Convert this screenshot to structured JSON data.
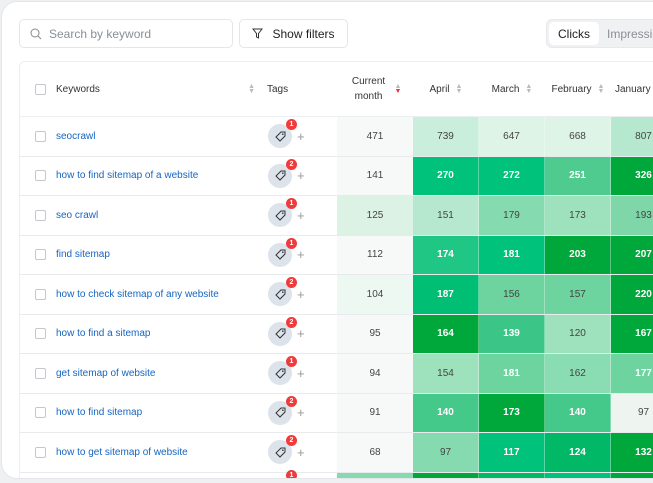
{
  "search": {
    "placeholder": "Search by keyword"
  },
  "filters_label": "Show filters",
  "metric_toggle": {
    "active": "Clicks",
    "inactive": "Impressions"
  },
  "columns": {
    "keywords": "Keywords",
    "tags": "Tags",
    "current": "Current month",
    "months": [
      "April",
      "March",
      "February",
      "January"
    ]
  },
  "sorted_column": "Current month",
  "sort_direction": "descending",
  "rows": [
    {
      "keyword": "seocrawl",
      "tags": "1",
      "current": "471",
      "cur_color": "#f7f9f8",
      "values": [
        "739",
        "647",
        "668",
        "807"
      ],
      "colors": [
        "#c9eedb",
        "#ddf4e7",
        "#ddf4e7",
        "#b6e8cf"
      ],
      "light": [
        0,
        0,
        0,
        0
      ]
    },
    {
      "keyword": "how to find sitemap of a website",
      "tags": "2",
      "current": "141",
      "cur_color": "#f7f9f8",
      "values": [
        "270",
        "272",
        "251",
        "326"
      ],
      "colors": [
        "#00c27a",
        "#00c27a",
        "#4fcb8f",
        "#00a83c"
      ],
      "light": [
        1,
        1,
        1,
        1
      ]
    },
    {
      "keyword": "seo crawl",
      "tags": "1",
      "current": "125",
      "cur_color": "#dcf2e5",
      "values": [
        "151",
        "179",
        "173",
        "193"
      ],
      "colors": [
        "#b6e8cf",
        "#86dab0",
        "#9ee1bd",
        "#7ed6a9"
      ],
      "light": [
        0,
        0,
        0,
        0
      ]
    },
    {
      "keyword": "find sitemap",
      "tags": "1",
      "current": "112",
      "cur_color": "#f7f9f8",
      "values": [
        "174",
        "181",
        "203",
        "207"
      ],
      "colors": [
        "#1fc684",
        "#00c27a",
        "#00a83c",
        "#00a83c"
      ],
      "light": [
        1,
        1,
        1,
        1
      ]
    },
    {
      "keyword": "how to check sitemap of any website",
      "tags": "2",
      "current": "104",
      "cur_color": "#eef8f2",
      "values": [
        "187",
        "156",
        "157",
        "220"
      ],
      "colors": [
        "#00bf74",
        "#6dd39f",
        "#6dd39f",
        "#00a83c"
      ],
      "light": [
        1,
        0,
        0,
        1
      ]
    },
    {
      "keyword": "how to find a sitemap",
      "tags": "2",
      "current": "95",
      "cur_color": "#f7f9f8",
      "values": [
        "164",
        "139",
        "120",
        "167"
      ],
      "colors": [
        "#00a83c",
        "#3bc687",
        "#9ee1bd",
        "#00a83c"
      ],
      "light": [
        1,
        1,
        0,
        1
      ]
    },
    {
      "keyword": "get sitemap of website",
      "tags": "1",
      "current": "94",
      "cur_color": "#f7f9f8",
      "values": [
        "154",
        "181",
        "162",
        "177"
      ],
      "colors": [
        "#9ee1bd",
        "#6dd39f",
        "#8adcb3",
        "#6dd39f"
      ],
      "light": [
        0,
        1,
        0,
        1
      ]
    },
    {
      "keyword": "how to find sitemap",
      "tags": "2",
      "current": "91",
      "cur_color": "#f7f9f8",
      "values": [
        "140",
        "173",
        "140",
        "97"
      ],
      "colors": [
        "#45c98b",
        "#00a83c",
        "#45c98b",
        "#eef5f1"
      ],
      "light": [
        1,
        1,
        1,
        0
      ]
    },
    {
      "keyword": "how to get sitemap of website",
      "tags": "2",
      "current": "68",
      "cur_color": "#f7f9f8",
      "values": [
        "97",
        "117",
        "124",
        "132"
      ],
      "colors": [
        "#86dab0",
        "#00c27a",
        "#00b865",
        "#00a83c"
      ],
      "light": [
        0,
        1,
        1,
        1
      ]
    },
    {
      "keyword": "",
      "tags": "1",
      "current": "",
      "cur_color": "#86dab0",
      "values": [
        "",
        "",
        "",
        ""
      ],
      "colors": [
        "#00a83c",
        "#00b865",
        "#00c27a",
        "#00a83c"
      ],
      "light": [
        1,
        1,
        1,
        1
      ]
    }
  ]
}
